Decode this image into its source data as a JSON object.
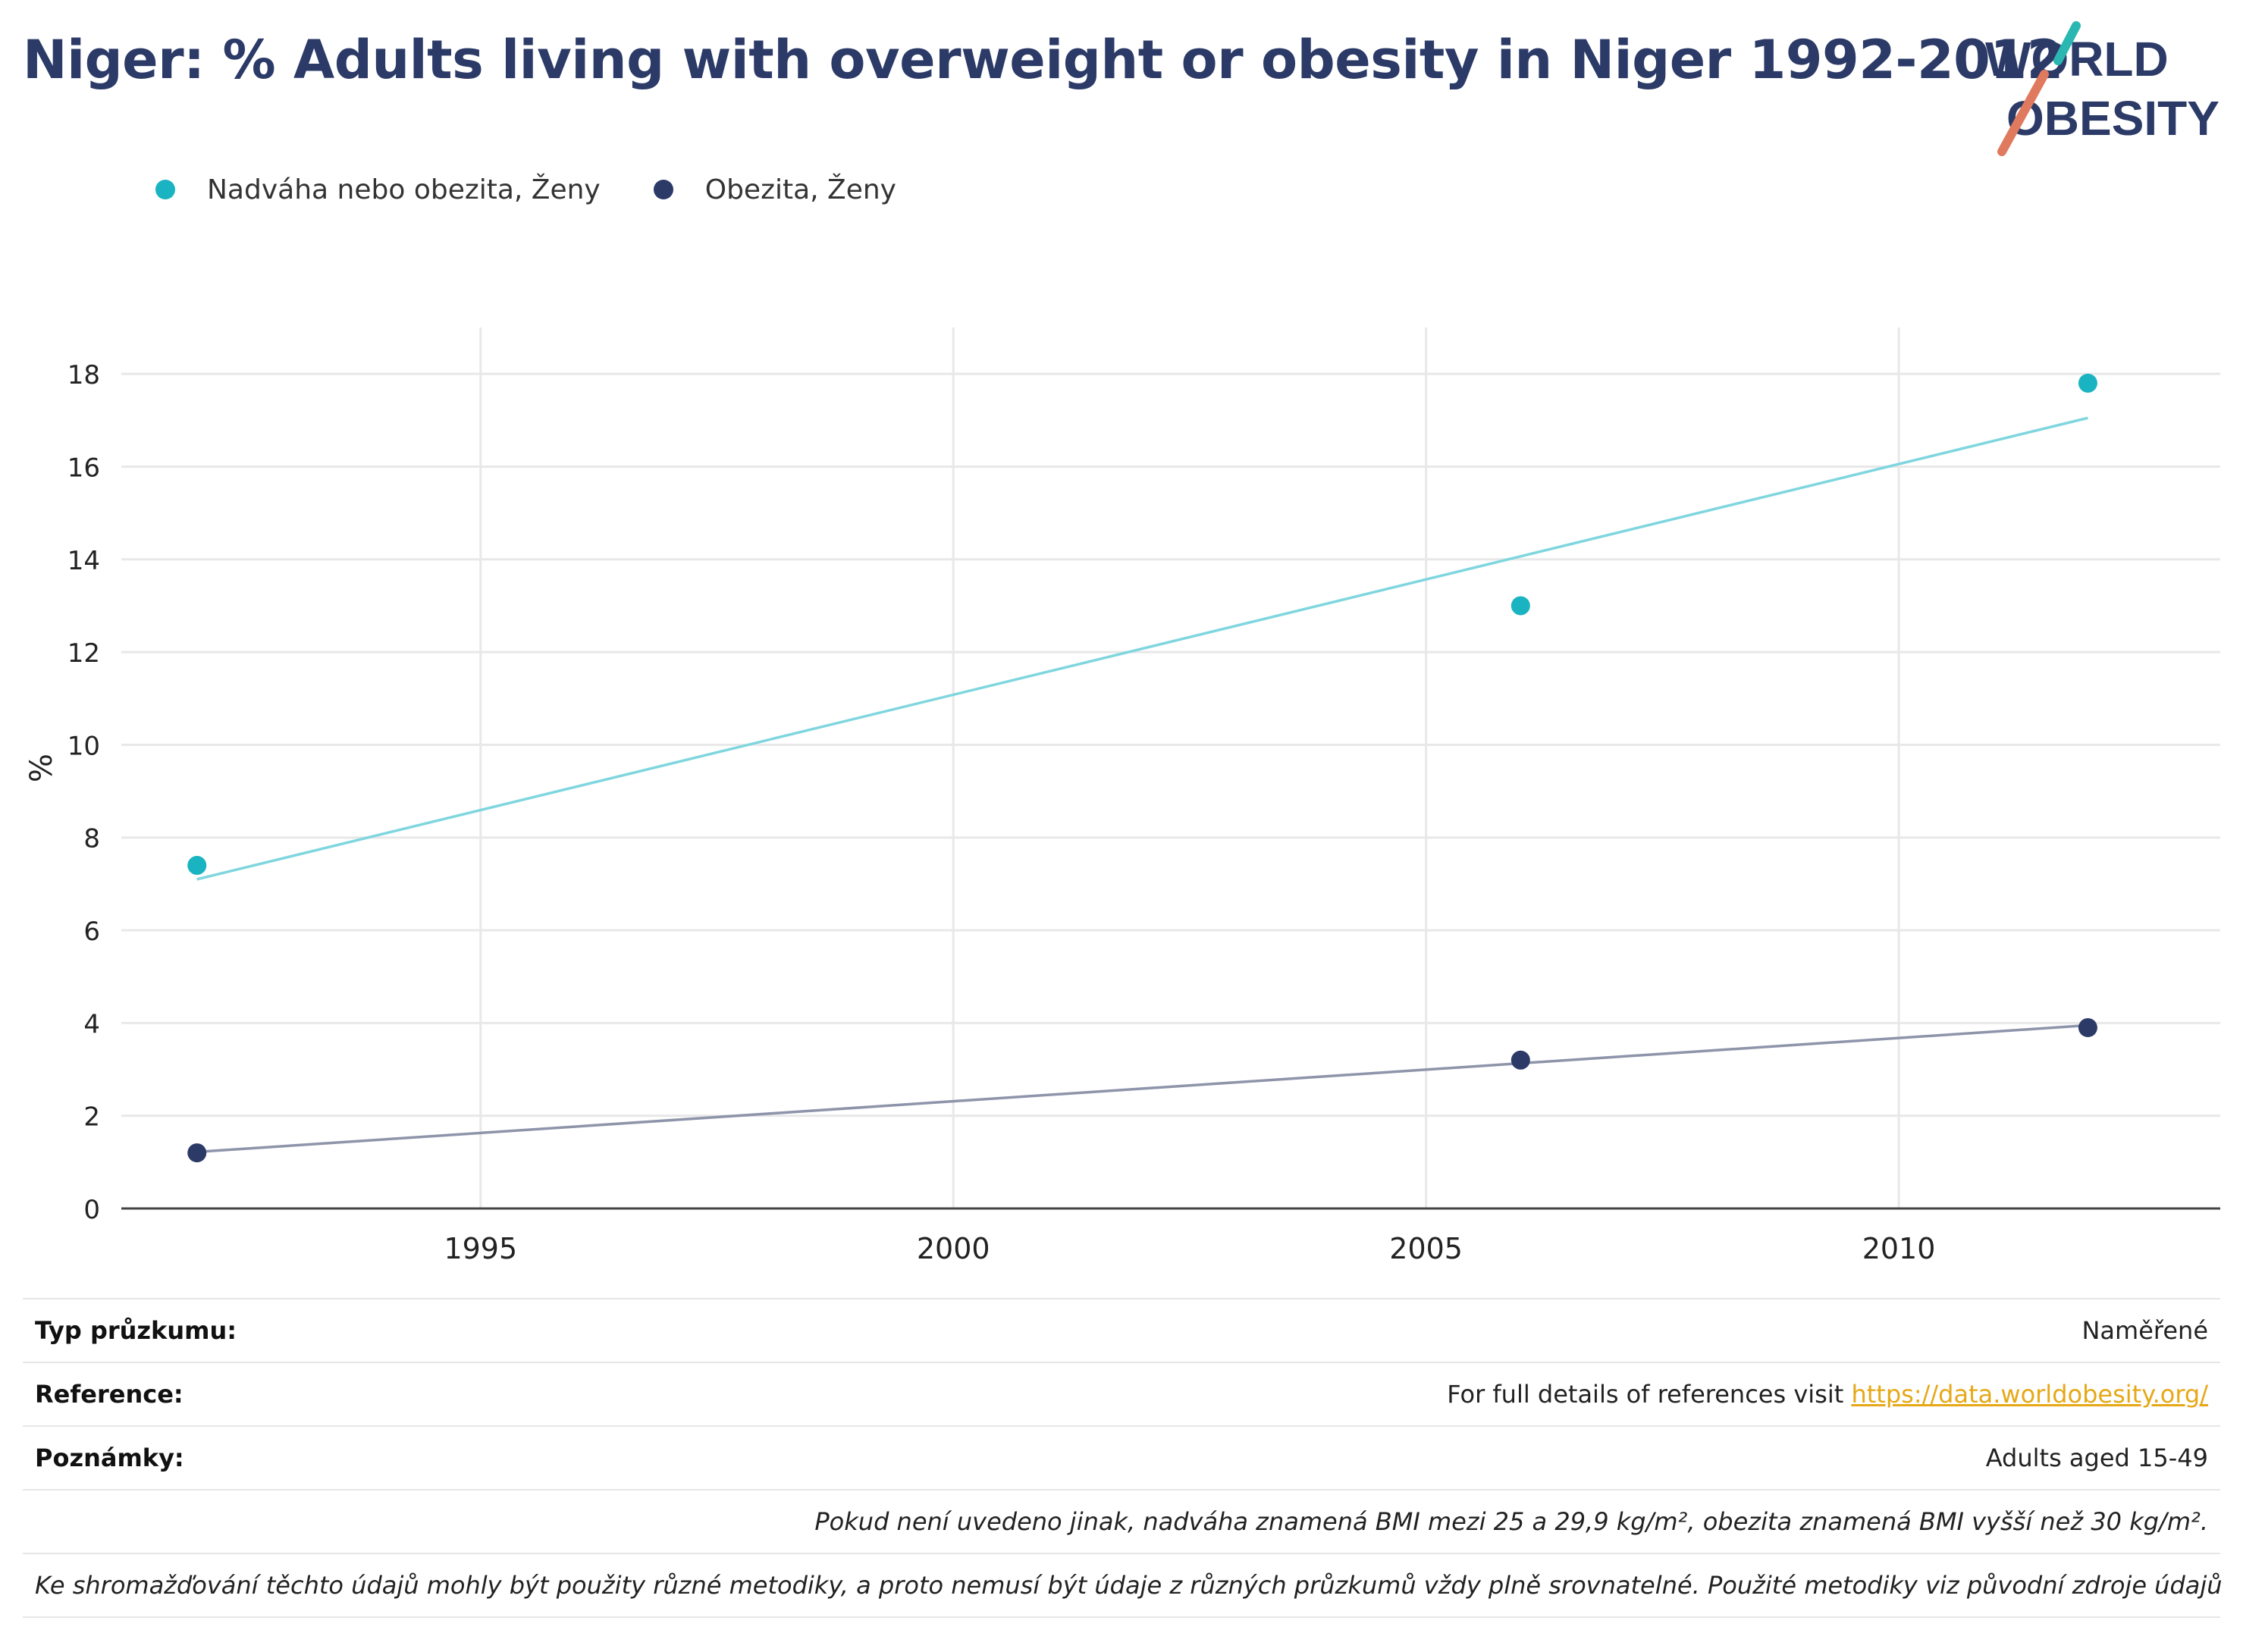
{
  "title": "Niger: % Adults living with overweight or obesity in Niger 1992-2012",
  "logo": {
    "line1": "WORLD",
    "line2": "OBESITY"
  },
  "colors": {
    "series1": "#1ab3c1",
    "series1_trend": "#7fd6de",
    "series2": "#2b3a67",
    "series2_trend": "#8e94aa",
    "title": "#2b3a67"
  },
  "chart_data": {
    "type": "scatter",
    "title": "Niger: % Adults living with overweight or obesity in Niger 1992-2012",
    "xlabel": "",
    "ylabel": "%",
    "xlim": [
      1991.2,
      2013.4
    ],
    "ylim": [
      0,
      19
    ],
    "xticks": [
      1995,
      2000,
      2005,
      2010
    ],
    "yticks": [
      0,
      2,
      4,
      6,
      8,
      10,
      12,
      14,
      16,
      18
    ],
    "grid": true,
    "legend": "top-left",
    "series": [
      {
        "name": "Nadváha nebo obezita, Ženy",
        "x": [
          1992,
          2006,
          2012
        ],
        "y": [
          7.4,
          13.0,
          17.8
        ],
        "trend": [
          [
            1992,
            7.1
          ],
          [
            2012,
            17.05
          ]
        ]
      },
      {
        "name": "Obezita, Ženy",
        "x": [
          1992,
          2006,
          2012
        ],
        "y": [
          1.2,
          3.2,
          3.9
        ],
        "trend": [
          [
            1992,
            1.22
          ],
          [
            2012,
            3.95
          ]
        ]
      }
    ]
  },
  "info": [
    {
      "label": "Typ průzkumu:",
      "value": "Naměřené"
    },
    {
      "label": "Reference:",
      "value": "For full details of references visit ",
      "link": "https://data.worldobesity.org/"
    },
    {
      "label": "Poznámky:",
      "value": "Adults aged 15-49"
    },
    {
      "label": "",
      "value": "Pokud není uvedeno jinak, nadváha znamená BMI mezi 25 a 29,9 kg/m², obezita znamená BMI vyšší než 30 kg/m²."
    },
    {
      "label": "",
      "value": "Ke shromažďování těchto údajů mohly být použity různé metodiky, a proto nemusí být údaje z různých průzkumů vždy plně srovnatelné. Použité metodiky viz původní zdroje údajů"
    }
  ]
}
